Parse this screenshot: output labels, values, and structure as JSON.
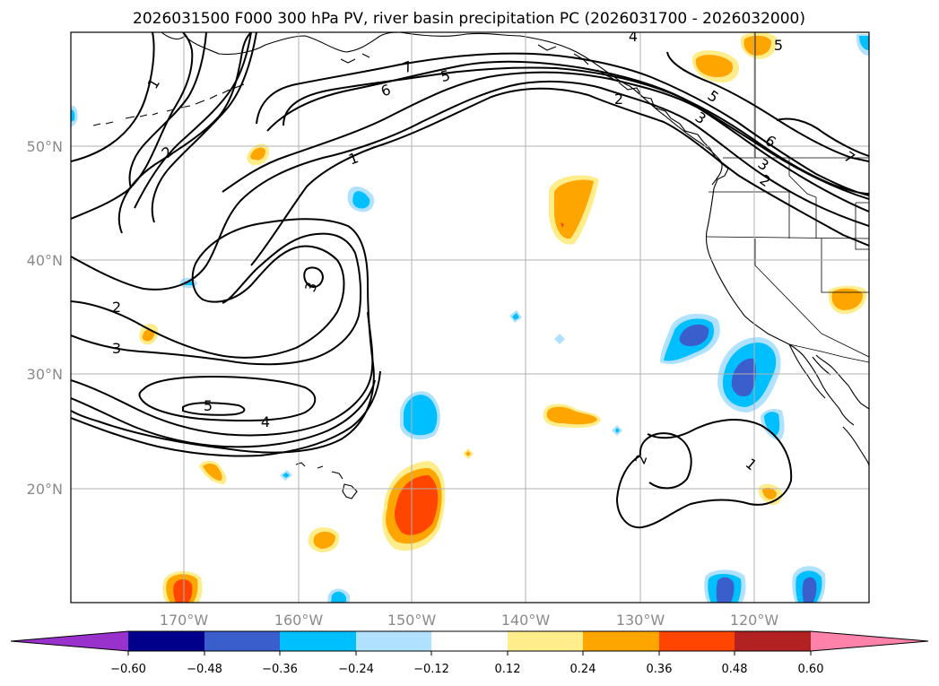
{
  "title": "2026031500 F000 300 hPa PV, river basin precipitation PC (2026031700 - 2026032000)",
  "lat_labels": [
    "50°N",
    "40°N",
    "30°N",
    "20°N"
  ],
  "lon_labels": [
    "170°W",
    "160°W",
    "150°W",
    "140°W",
    "130°W",
    "120°W"
  ],
  "colorbar": {
    "ticks": [
      "−0.60",
      "−0.48",
      "−0.36",
      "−0.24",
      "−0.12",
      "0.12",
      "0.24",
      "0.36",
      "0.48",
      "0.60"
    ],
    "colors": {
      "under": "#9932cc",
      "neg_060_048": "#00008b",
      "neg_048_036": "#3a5fcd",
      "neg_036_024": "#00bfff",
      "neg_024_012": "#b0e2ff",
      "neutral": "#ffffff",
      "pos_012_024": "#ffec8b",
      "pos_024_036": "#ffa500",
      "pos_036_048": "#ff4500",
      "pos_048_060": "#b22222",
      "over": "#ff82ab"
    }
  },
  "pv_contour_labels": [
    "1",
    "2",
    "5",
    "6",
    "7",
    "3",
    "6",
    "7",
    "2",
    "1",
    "5",
    "3",
    "2",
    "3",
    "3",
    "5",
    "4",
    "4",
    "2",
    "1",
    "5",
    "2"
  ]
}
